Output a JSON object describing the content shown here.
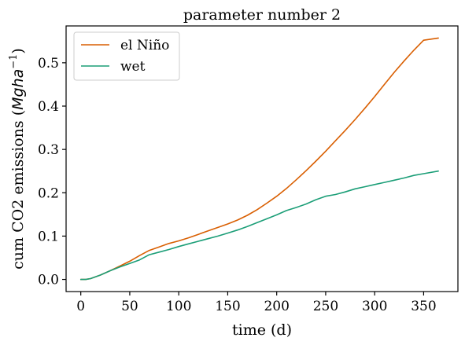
{
  "chart_data": {
    "type": "line",
    "title": "parameter number 2",
    "xlabel": "time (d)",
    "ylabel_prefix": "cum CO2 emissions (",
    "ylabel_math": "Mgha",
    "ylabel_sup": "−1",
    "ylabel_suffix": ")",
    "xlim": [
      -15,
      385
    ],
    "ylim": [
      -0.028,
      0.585
    ],
    "xticks": [
      0,
      50,
      100,
      150,
      200,
      250,
      300,
      350
    ],
    "xtick_labels": [
      "0",
      "50",
      "100",
      "150",
      "200",
      "250",
      "300",
      "350"
    ],
    "yticks": [
      0.0,
      0.1,
      0.2,
      0.3,
      0.4,
      0.5
    ],
    "ytick_labels": [
      "0.0",
      "0.1",
      "0.2",
      "0.3",
      "0.4",
      "0.5"
    ],
    "grid": false,
    "legend_position": "top-left",
    "series": [
      {
        "name": "el Niño",
        "color": "#d95f02",
        "x": [
          0,
          5,
          10,
          20,
          30,
          40,
          50,
          60,
          70,
          80,
          90,
          100,
          110,
          120,
          130,
          140,
          150,
          160,
          170,
          180,
          190,
          200,
          210,
          220,
          230,
          240,
          250,
          260,
          270,
          280,
          290,
          300,
          310,
          320,
          330,
          340,
          350,
          365
        ],
        "y": [
          0.0,
          0.0,
          0.002,
          0.01,
          0.02,
          0.031,
          0.042,
          0.055,
          0.067,
          0.075,
          0.083,
          0.089,
          0.096,
          0.104,
          0.112,
          0.12,
          0.128,
          0.137,
          0.148,
          0.161,
          0.176,
          0.192,
          0.21,
          0.23,
          0.251,
          0.273,
          0.296,
          0.32,
          0.344,
          0.369,
          0.395,
          0.422,
          0.45,
          0.478,
          0.504,
          0.529,
          0.552,
          0.557
        ]
      },
      {
        "name": "wet",
        "color": "#1b9e77",
        "x": [
          0,
          5,
          10,
          20,
          30,
          40,
          50,
          60,
          70,
          80,
          90,
          100,
          110,
          120,
          130,
          140,
          150,
          160,
          170,
          180,
          190,
          200,
          210,
          220,
          230,
          240,
          250,
          260,
          270,
          280,
          290,
          300,
          310,
          320,
          330,
          340,
          350,
          365
        ],
        "y": [
          0.0,
          0.0,
          0.002,
          0.01,
          0.02,
          0.029,
          0.037,
          0.045,
          0.057,
          0.063,
          0.069,
          0.076,
          0.082,
          0.088,
          0.094,
          0.1,
          0.107,
          0.114,
          0.122,
          0.131,
          0.14,
          0.149,
          0.159,
          0.166,
          0.174,
          0.184,
          0.192,
          0.196,
          0.202,
          0.209,
          0.214,
          0.219,
          0.224,
          0.229,
          0.234,
          0.24,
          0.244,
          0.25
        ]
      }
    ]
  }
}
